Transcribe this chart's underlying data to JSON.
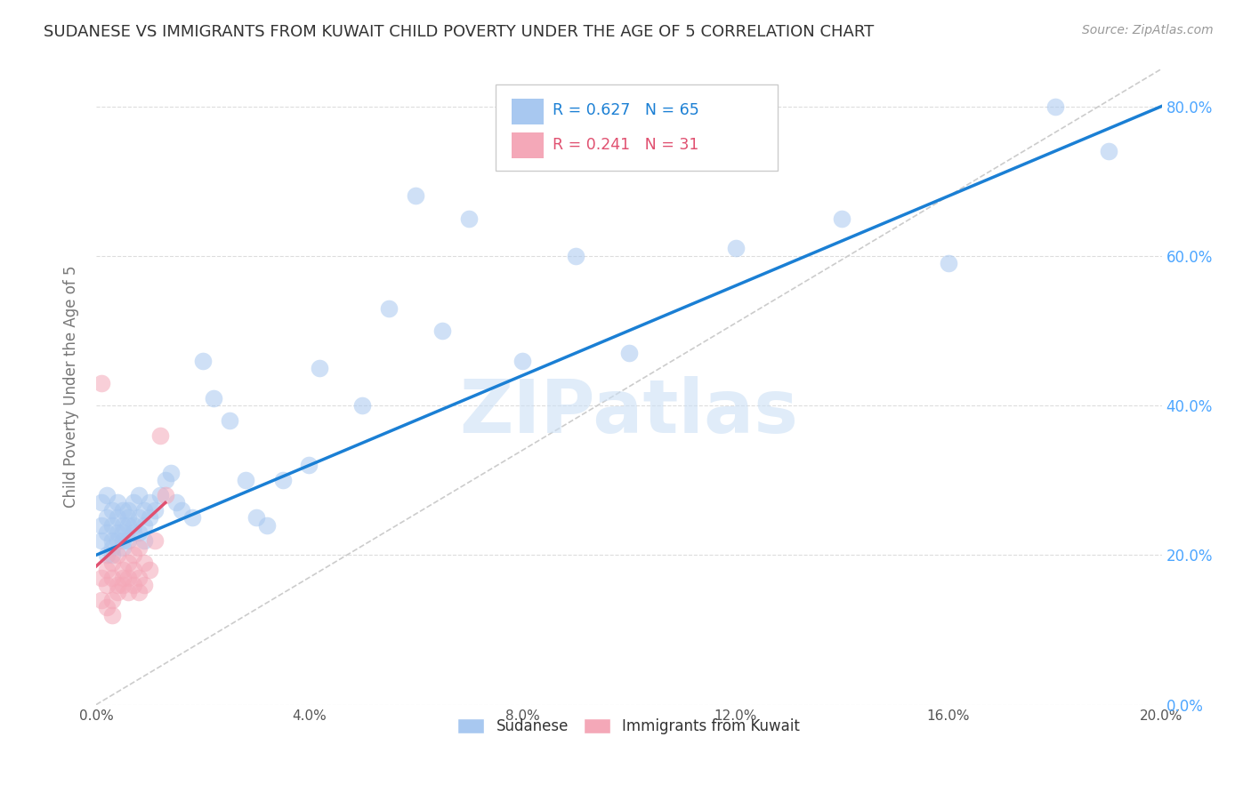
{
  "title": "SUDANESE VS IMMIGRANTS FROM KUWAIT CHILD POVERTY UNDER THE AGE OF 5 CORRELATION CHART",
  "source": "Source: ZipAtlas.com",
  "ylabel": "Child Poverty Under the Age of 5",
  "xlim": [
    0.0,
    0.2
  ],
  "ylim": [
    0.0,
    0.85
  ],
  "x_ticks": [
    0.0,
    0.04,
    0.08,
    0.12,
    0.16,
    0.2
  ],
  "y_ticks": [
    0.0,
    0.2,
    0.4,
    0.6,
    0.8
  ],
  "watermark": "ZIPatlas",
  "legend_blue_R": "0.627",
  "legend_blue_N": "65",
  "legend_pink_R": "0.241",
  "legend_pink_N": "31",
  "blue_color": "#a8c8f0",
  "pink_color": "#f4a8b8",
  "blue_line_color": "#1a7fd4",
  "pink_line_color": "#e05070",
  "diag_color": "#cccccc",
  "background_color": "#ffffff",
  "grid_color": "#dddddd",
  "title_color": "#333333",
  "axis_label_color": "#777777",
  "tick_label_color_y": "#4da6ff",
  "tick_label_color_x": "#555555",
  "legend_label_color": "#333333",
  "legend_R_blue_color": "#1a7fd4",
  "legend_R_pink_color": "#e05070",
  "sudanese_x": [
    0.001,
    0.001,
    0.001,
    0.002,
    0.002,
    0.002,
    0.002,
    0.003,
    0.003,
    0.003,
    0.003,
    0.003,
    0.004,
    0.004,
    0.004,
    0.004,
    0.005,
    0.005,
    0.005,
    0.005,
    0.005,
    0.006,
    0.006,
    0.006,
    0.006,
    0.007,
    0.007,
    0.007,
    0.008,
    0.008,
    0.008,
    0.009,
    0.009,
    0.009,
    0.01,
    0.01,
    0.011,
    0.012,
    0.013,
    0.014,
    0.015,
    0.016,
    0.018,
    0.02,
    0.022,
    0.025,
    0.028,
    0.03,
    0.032,
    0.035,
    0.04,
    0.042,
    0.05,
    0.055,
    0.06,
    0.065,
    0.07,
    0.08,
    0.09,
    0.1,
    0.12,
    0.14,
    0.16,
    0.18,
    0.19
  ],
  "sudanese_y": [
    0.22,
    0.27,
    0.24,
    0.2,
    0.25,
    0.23,
    0.28,
    0.21,
    0.26,
    0.22,
    0.24,
    0.2,
    0.23,
    0.25,
    0.22,
    0.27,
    0.21,
    0.24,
    0.22,
    0.26,
    0.23,
    0.24,
    0.26,
    0.22,
    0.25,
    0.23,
    0.27,
    0.24,
    0.25,
    0.28,
    0.23,
    0.24,
    0.26,
    0.22,
    0.25,
    0.27,
    0.26,
    0.28,
    0.3,
    0.31,
    0.27,
    0.26,
    0.25,
    0.46,
    0.41,
    0.38,
    0.3,
    0.25,
    0.24,
    0.3,
    0.32,
    0.45,
    0.4,
    0.53,
    0.68,
    0.5,
    0.65,
    0.46,
    0.6,
    0.47,
    0.61,
    0.65,
    0.59,
    0.8,
    0.74
  ],
  "kuwait_x": [
    0.001,
    0.001,
    0.001,
    0.002,
    0.002,
    0.002,
    0.003,
    0.003,
    0.003,
    0.003,
    0.004,
    0.004,
    0.004,
    0.005,
    0.005,
    0.005,
    0.006,
    0.006,
    0.006,
    0.007,
    0.007,
    0.007,
    0.008,
    0.008,
    0.008,
    0.009,
    0.009,
    0.01,
    0.011,
    0.012,
    0.013
  ],
  "kuwait_y": [
    0.17,
    0.14,
    0.43,
    0.16,
    0.18,
    0.13,
    0.17,
    0.19,
    0.14,
    0.12,
    0.16,
    0.2,
    0.15,
    0.18,
    0.17,
    0.16,
    0.19,
    0.17,
    0.15,
    0.18,
    0.2,
    0.16,
    0.17,
    0.21,
    0.15,
    0.16,
    0.19,
    0.18,
    0.22,
    0.36,
    0.28
  ],
  "blue_line_x": [
    0.0,
    0.2
  ],
  "blue_line_y": [
    0.2,
    0.8
  ],
  "pink_line_x": [
    0.0,
    0.013
  ],
  "pink_line_y": [
    0.185,
    0.27
  ]
}
